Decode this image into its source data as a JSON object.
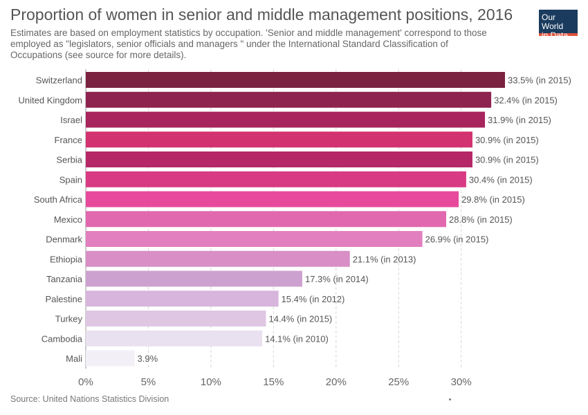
{
  "header": {
    "title": "Proportion of women in senior and middle management positions, 2016",
    "subtitle": "Estimates are based on employment statistics by occupation. 'Senior and middle management' correspond to those employed as \"legislators, senior officials and managers \" under the International Standard Classification of Occupations (see source for more details).",
    "logo_line1": "Our World",
    "logo_line2": "in Data"
  },
  "footer": {
    "source": "Source: United Nations Statistics Division"
  },
  "chart_data": {
    "type": "bar",
    "orientation": "horizontal",
    "title": "Proportion of women in senior and middle management positions, 2016",
    "xlim": [
      0,
      33.5
    ],
    "grid": "vertical dashed",
    "x_ticks": [
      0,
      5,
      10,
      15,
      20,
      25,
      30
    ],
    "x_tick_labels": [
      "0%",
      "5%",
      "10%",
      "15%",
      "20%",
      "25%",
      "30%"
    ],
    "categories": [
      "Switzerland",
      "United Kingdom",
      "Israel",
      "France",
      "Serbia",
      "Spain",
      "South Africa",
      "Mexico",
      "Denmark",
      "Ethiopia",
      "Tanzania",
      "Palestine",
      "Turkey",
      "Cambodia",
      "Mali"
    ],
    "values": [
      33.5,
      32.4,
      31.9,
      30.9,
      30.9,
      30.4,
      29.8,
      28.8,
      26.9,
      21.1,
      17.3,
      15.4,
      14.4,
      14.1,
      3.9
    ],
    "value_labels": [
      "33.5% (in 2015)",
      "32.4% (in 2015)",
      "31.9% (in 2015)",
      "30.9% (in 2015)",
      "30.9% (in 2015)",
      "30.4% (in 2015)",
      "29.8% (in 2015)",
      "28.8% (in 2015)",
      "26.9% (in 2015)",
      "21.1% (in 2013)",
      "17.3% (in 2014)",
      "15.4% (in 2012)",
      "14.4% (in 2015)",
      "14.1% (in 2010)",
      "3.9%"
    ],
    "colors": [
      "#7b2240",
      "#8f2350",
      "#a8245c",
      "#d2326f",
      "#b62768",
      "#d83a83",
      "#e74a9c",
      "#e168ae",
      "#e17fbf",
      "#d98ec6",
      "#cda1cf",
      "#d7b5dc",
      "#dfc7e4",
      "#e9e1ef",
      "#f3eff6"
    ]
  }
}
